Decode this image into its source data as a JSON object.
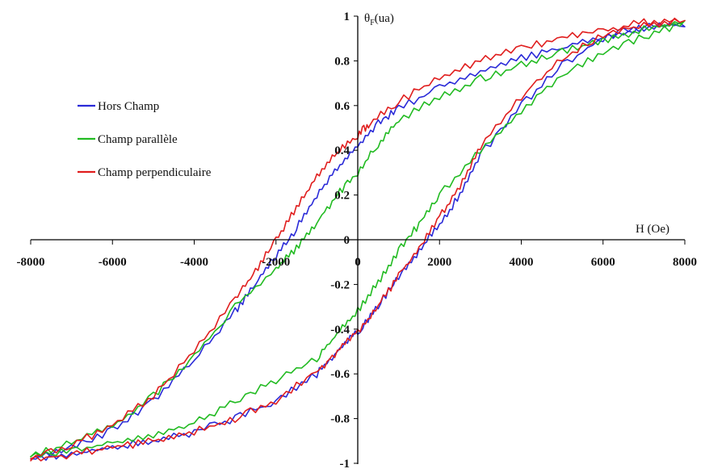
{
  "chart_data": {
    "type": "line",
    "xlabel": "H (Oe)",
    "ylabel": "θF(ua)",
    "ylabel_main": "θ",
    "ylabel_sub": "F",
    "ylabel_unit": "(ua)",
    "xlim": [
      -8000,
      8000
    ],
    "ylim": [
      -1,
      1
    ],
    "x_ticks": [
      -8000,
      -6000,
      -4000,
      -2000,
      0,
      2000,
      4000,
      6000,
      8000
    ],
    "x_tick_labels": [
      "-8000",
      "-6000",
      "-4000",
      "-2000",
      "0",
      "2000",
      "4000",
      "6000",
      "8000"
    ],
    "y_ticks": [
      -1,
      -0.8,
      -0.6,
      -0.4,
      -0.2,
      0,
      0.2,
      0.4,
      0.6,
      0.8,
      1
    ],
    "y_tick_labels": [
      "-1",
      "-0.8",
      "-0.6",
      "-0.4",
      "-0.2",
      "0",
      "0.2",
      "0.4",
      "0.6",
      "0.8",
      "1"
    ],
    "grid": false,
    "legend_position": "left",
    "series": [
      {
        "name": "Hors Champ",
        "color": "#2a2ad8",
        "x": [
          -8000,
          -7000,
          -6000,
          -5000,
          -4000,
          -3000,
          -2500,
          -2000,
          -1500,
          -1000,
          -500,
          0,
          500,
          1000,
          2000,
          3000,
          4000,
          5000,
          6000,
          7000,
          8000,
          7000,
          6000,
          5000,
          4000,
          3000,
          2500,
          2000,
          1500,
          1000,
          500,
          0,
          -500,
          -1000,
          -2000,
          -3000,
          -4000,
          -5000,
          -6000,
          -7000,
          -8000
        ],
        "y": [
          -0.98,
          -0.93,
          -0.85,
          -0.72,
          -0.54,
          -0.32,
          -0.2,
          -0.07,
          0.05,
          0.2,
          0.32,
          0.42,
          0.52,
          0.59,
          0.68,
          0.75,
          0.81,
          0.86,
          0.91,
          0.95,
          0.97,
          0.95,
          0.9,
          0.78,
          0.6,
          0.38,
          0.2,
          0.07,
          -0.05,
          -0.16,
          -0.3,
          -0.41,
          -0.5,
          -0.6,
          -0.72,
          -0.8,
          -0.86,
          -0.9,
          -0.93,
          -0.96,
          -0.98
        ]
      },
      {
        "name": "Champ parallèle",
        "color": "#22bb22",
        "x": [
          -8000,
          -7000,
          -6000,
          -5000,
          -4000,
          -3000,
          -2000,
          -1500,
          -1000,
          -500,
          0,
          500,
          1000,
          2000,
          3000,
          4000,
          5000,
          6000,
          7000,
          8000,
          7000,
          6000,
          5000,
          4000,
          3000,
          2000,
          1500,
          1000,
          500,
          0,
          -500,
          -1000,
          -2000,
          -3000,
          -4000,
          -5000,
          -6000,
          -7000,
          -8000
        ],
        "y": [
          -0.97,
          -0.91,
          -0.83,
          -0.7,
          -0.52,
          -0.3,
          -0.13,
          -0.04,
          0.08,
          0.2,
          0.3,
          0.43,
          0.53,
          0.64,
          0.72,
          0.78,
          0.84,
          0.89,
          0.94,
          0.97,
          0.91,
          0.84,
          0.74,
          0.58,
          0.4,
          0.2,
          0.07,
          -0.05,
          -0.19,
          -0.32,
          -0.42,
          -0.53,
          -0.63,
          -0.72,
          -0.82,
          -0.87,
          -0.91,
          -0.94,
          -0.97
        ]
      },
      {
        "name": "Champ perpendiculaire",
        "color": "#e01e1e",
        "x": [
          -8000,
          -7000,
          -6000,
          -5000,
          -4000,
          -3000,
          -2500,
          -2000,
          -1500,
          -1000,
          -500,
          0,
          300,
          1000,
          2000,
          3000,
          4000,
          5000,
          6000,
          7000,
          8000,
          7000,
          6000,
          5000,
          4000,
          3000,
          2500,
          2000,
          1500,
          1000,
          500,
          0,
          -500,
          -1000,
          -2000,
          -3000,
          -4000,
          -5000,
          -6000,
          -7000,
          -8000
        ],
        "y": [
          -0.98,
          -0.92,
          -0.83,
          -0.7,
          -0.5,
          -0.27,
          -0.14,
          0.0,
          0.14,
          0.28,
          0.4,
          0.47,
          0.52,
          0.62,
          0.72,
          0.8,
          0.86,
          0.9,
          0.94,
          0.97,
          0.98,
          0.96,
          0.92,
          0.81,
          0.64,
          0.42,
          0.24,
          0.1,
          -0.04,
          -0.16,
          -0.3,
          -0.41,
          -0.5,
          -0.59,
          -0.72,
          -0.8,
          -0.86,
          -0.9,
          -0.93,
          -0.96,
          -0.98
        ]
      }
    ]
  }
}
